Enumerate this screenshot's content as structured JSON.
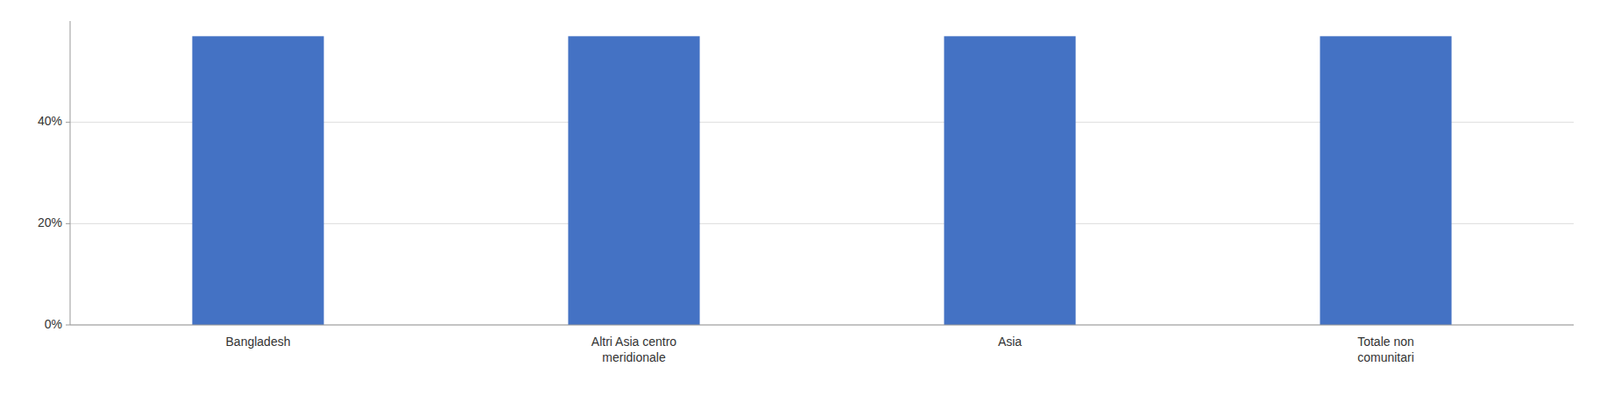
{
  "chart_data": {
    "type": "bar",
    "categories": [
      "Bangladesh",
      "Altri Asia centro\nmeridionale",
      "Asia",
      "Totale non\ncomunitari"
    ],
    "values": [
      0.57,
      0.57,
      0.57,
      0.57
    ],
    "color": "#4472C4",
    "ylim": [
      0,
      0.6
    ],
    "yticks": [
      {
        "value": 0.0,
        "label": "0%"
      },
      {
        "value": 0.2,
        "label": "20%"
      },
      {
        "value": 0.4,
        "label": "40%"
      }
    ],
    "grid": true
  }
}
